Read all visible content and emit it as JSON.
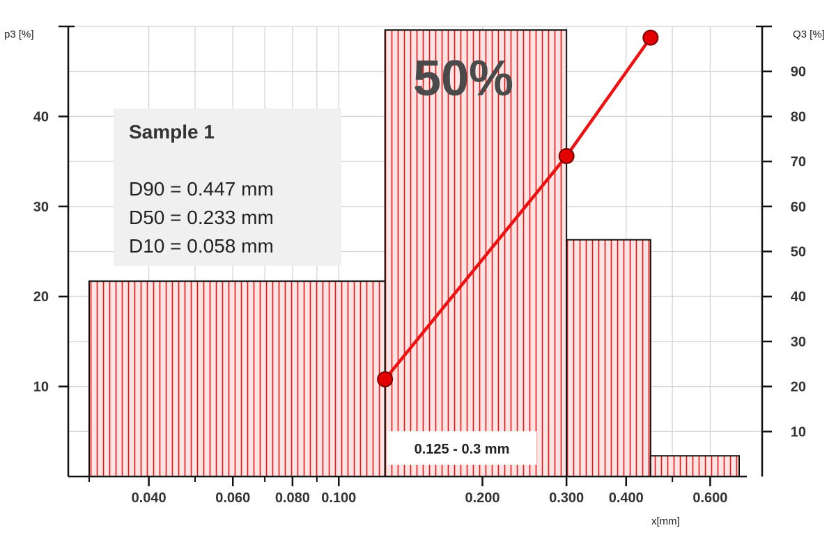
{
  "chart_data": {
    "type": "bar",
    "subtype": "histogram-with-cumulative-line",
    "x_axis": {
      "label": "x[mm]",
      "scale": "log",
      "range": [
        0.03,
        0.69
      ],
      "ticks": [
        {
          "value": 0.04,
          "label": "0.040"
        },
        {
          "value": 0.06,
          "label": "0.060"
        },
        {
          "value": 0.08,
          "label": "0.080"
        },
        {
          "value": 0.1,
          "label": "0.100"
        },
        {
          "value": 0.2,
          "label": "0.200"
        },
        {
          "value": 0.3,
          "label": "0.300"
        },
        {
          "value": 0.4,
          "label": "0.400"
        },
        {
          "value": 0.6,
          "label": "0.600"
        }
      ]
    },
    "y_left": {
      "label": "p3 [%]",
      "range": [
        0,
        50
      ],
      "ticks": [
        10,
        20,
        30,
        40
      ]
    },
    "y_right": {
      "label": "Q3 [%]",
      "range": [
        0,
        100
      ],
      "ticks": [
        10,
        20,
        30,
        40,
        50,
        60,
        70,
        80,
        90
      ]
    },
    "grid": true,
    "bars": [
      {
        "from": 0.03,
        "to": 0.125,
        "p3": 21.7
      },
      {
        "from": 0.125,
        "to": 0.3,
        "p3": 49.6
      },
      {
        "from": 0.3,
        "to": 0.45,
        "p3": 26.3
      },
      {
        "from": 0.45,
        "to": 0.69,
        "p3": 2.3
      }
    ],
    "cumulative_series": {
      "axis": "right",
      "points": [
        {
          "x": 0.125,
          "y": 21.6
        },
        {
          "x": 0.3,
          "y": 71.2
        },
        {
          "x": 0.45,
          "y": 97.5
        }
      ]
    },
    "annotations": {
      "highlight_label": "50%",
      "range_label": "0.125 - 0.3 mm"
    },
    "info_box": {
      "title": "Sample 1",
      "lines": [
        "D90 = 0.447 mm",
        "D50 = 0.233 mm",
        "D10 = 0.058 mm"
      ]
    },
    "colors": {
      "bar_fill": "#fbe5e5",
      "bar_stripe": "#ee1111",
      "bar_outline": "#111111",
      "line": "#ee1111",
      "marker": "#e30000",
      "grid": "#d4d4d4",
      "info_box_bg": "#f0f0f0"
    }
  }
}
